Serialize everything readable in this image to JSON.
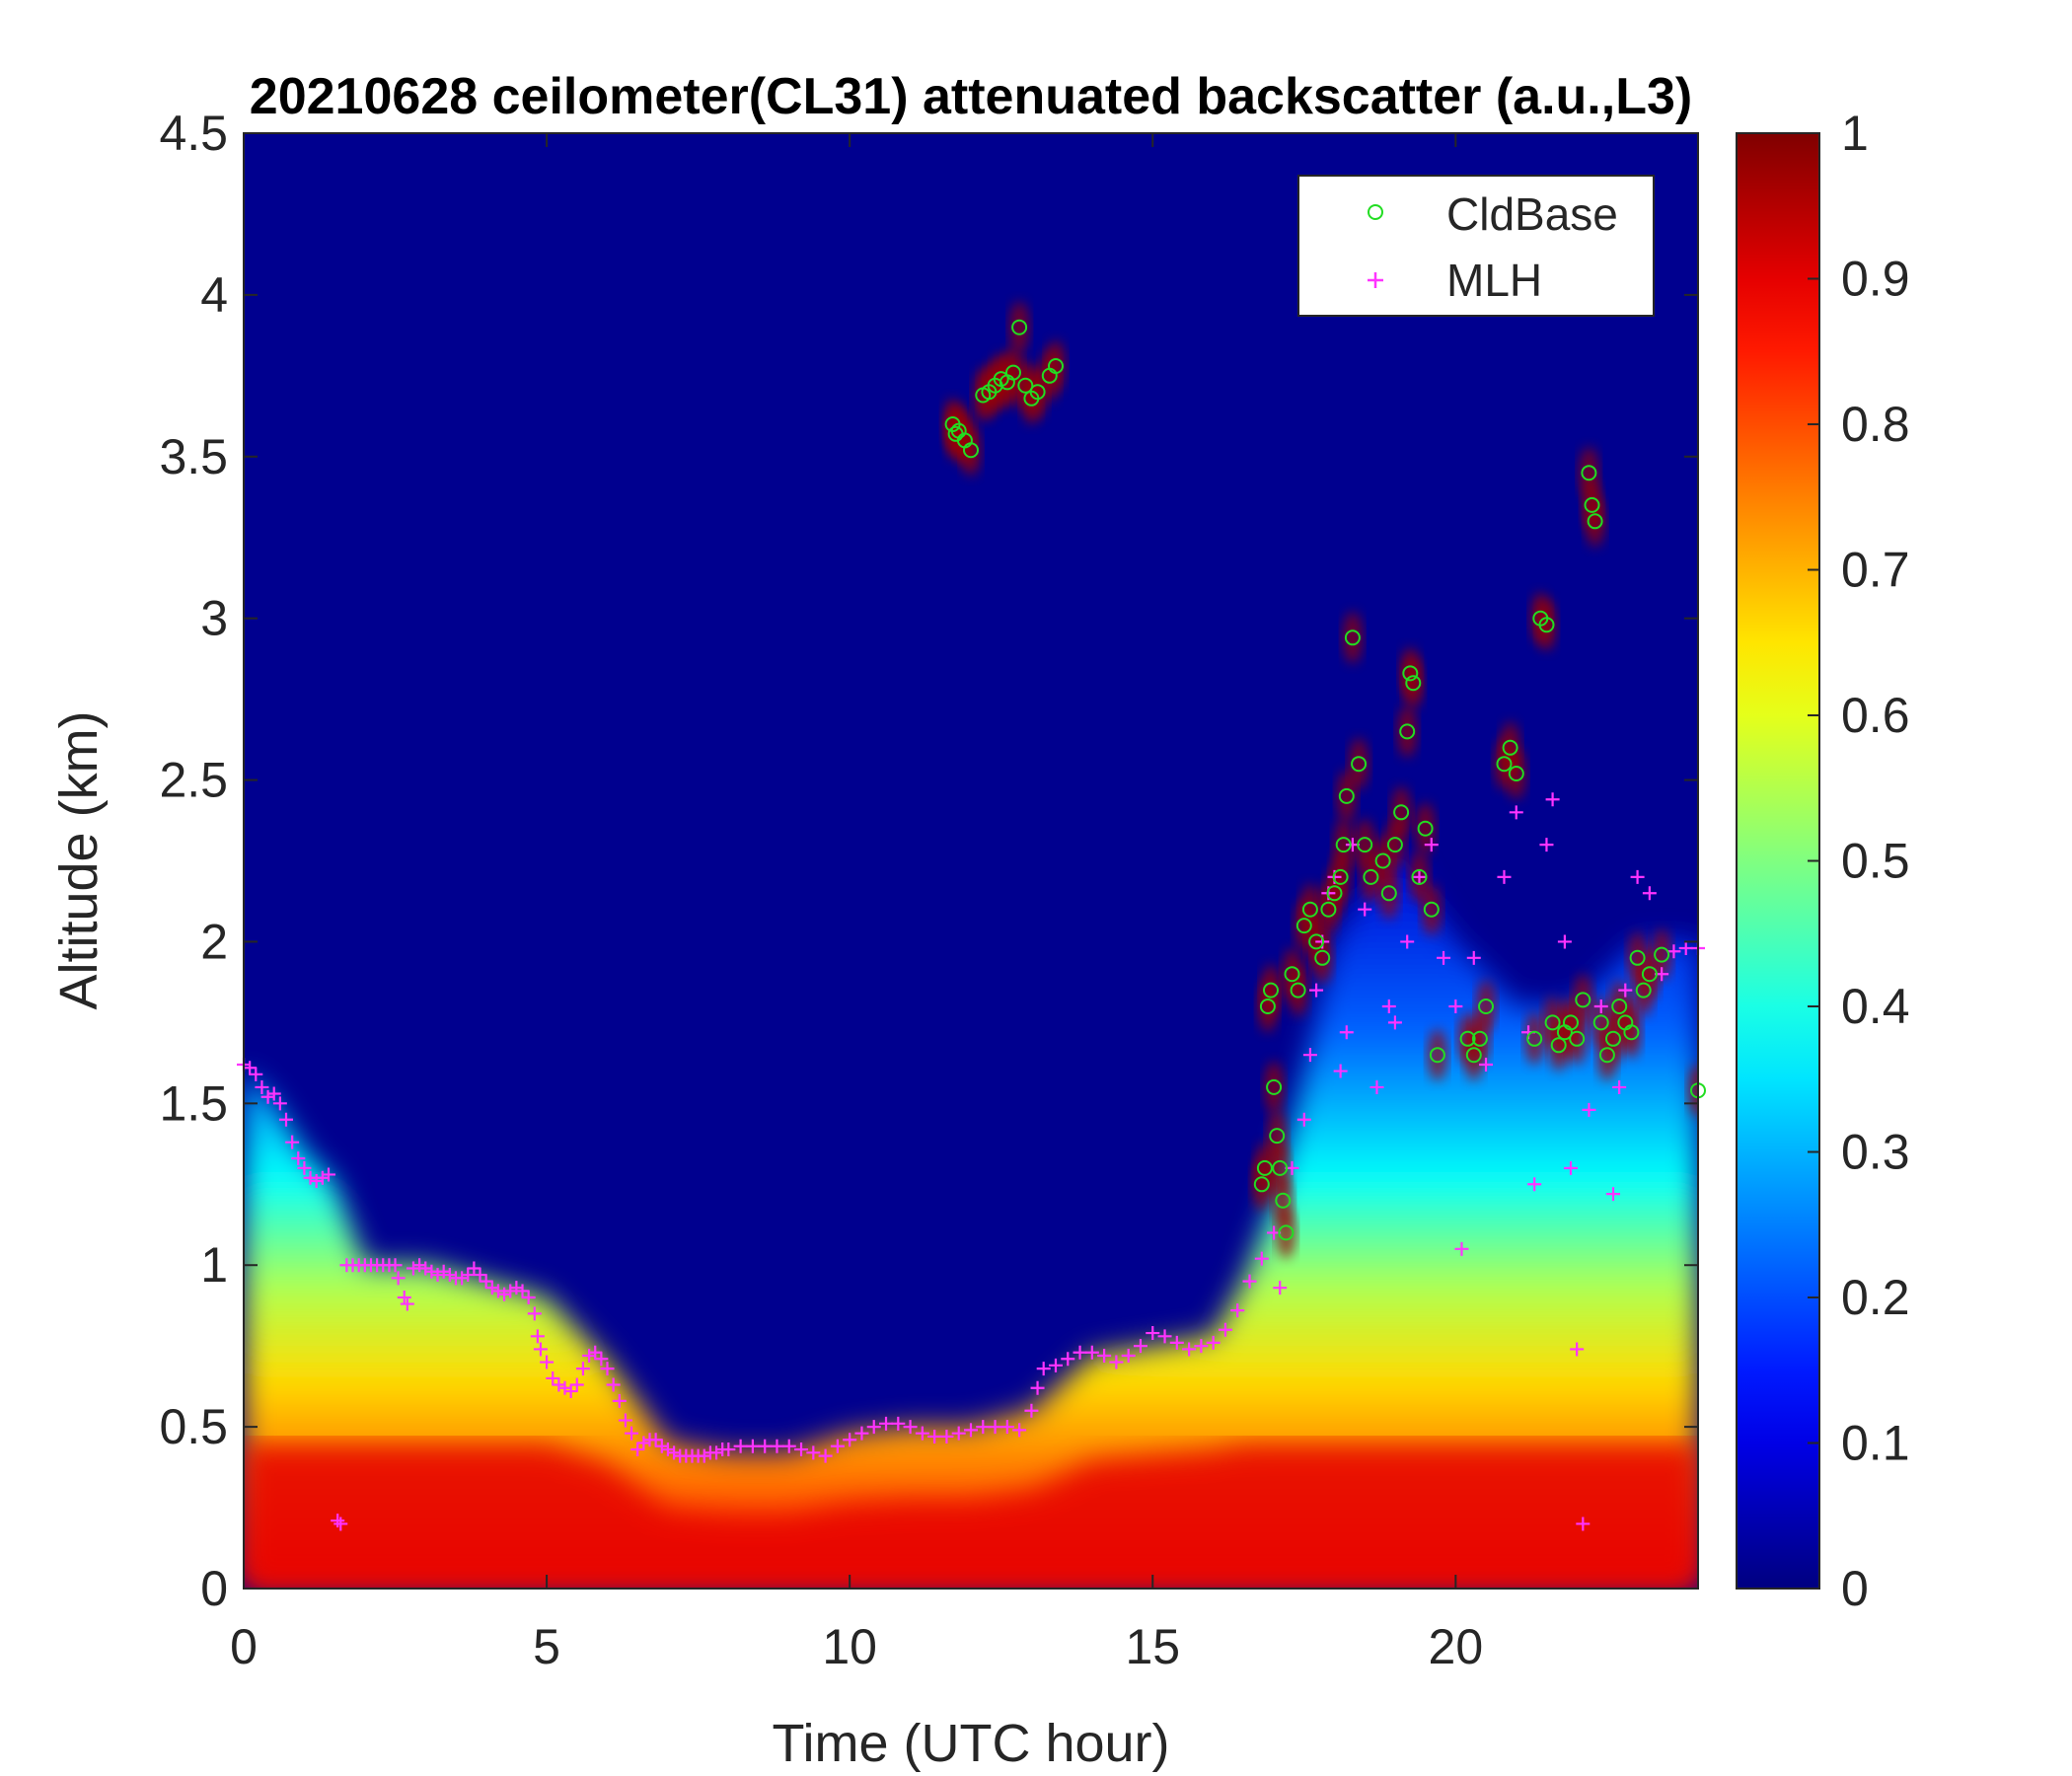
{
  "chart_data": {
    "type": "heatmap",
    "title": "20210628 ceilometer(CL31) attenuated backscatter (a.u.,L3)",
    "xlabel": "Time (UTC hour)",
    "ylabel": "Altitude (km)",
    "xlim": [
      0,
      24
    ],
    "ylim": [
      0,
      4.5
    ],
    "xticks": [
      0,
      5,
      10,
      15,
      20
    ],
    "xtick_labels": [
      "0",
      "5",
      "10",
      "15",
      "20"
    ],
    "yticks": [
      0,
      0.5,
      1,
      1.5,
      2,
      2.5,
      3,
      3.5,
      4,
      4.5
    ],
    "ytick_labels": [
      "0",
      "0.5",
      "1",
      "1.5",
      "2",
      "2.5",
      "3",
      "3.5",
      "4",
      "4.5"
    ],
    "colorbar": {
      "colormap": "jet",
      "range": [
        0,
        1
      ],
      "ticks": [
        0,
        0.1,
        0.2,
        0.3,
        0.4,
        0.5,
        0.6,
        0.7,
        0.8,
        0.9,
        1
      ],
      "tick_labels": [
        "0",
        "0.1",
        "0.2",
        "0.3",
        "0.4",
        "0.5",
        "0.6",
        "0.7",
        "0.8",
        "0.9",
        "1"
      ]
    },
    "legend": {
      "location": "top-right",
      "entries": [
        {
          "label": "CldBase",
          "marker": "circle",
          "color": "#22dd22"
        },
        {
          "label": "MLH",
          "marker": "plus",
          "color": "#ff33ff"
        }
      ]
    },
    "field_profile": {
      "time_hours": [
        0,
        0.5,
        1,
        1.5,
        2,
        3,
        4,
        5,
        6,
        7,
        8,
        9,
        10,
        11,
        12,
        13,
        14,
        15,
        16,
        16.5,
        17,
        17.5,
        18,
        19,
        20,
        21,
        22,
        23,
        24
      ],
      "layer_top_km": [
        1.6,
        1.5,
        1.35,
        1.25,
        1.0,
        1.0,
        0.95,
        0.9,
        0.7,
        0.45,
        0.42,
        0.42,
        0.48,
        0.5,
        0.5,
        0.55,
        0.72,
        0.75,
        0.78,
        0.95,
        1.2,
        1.6,
        2.0,
        2.3,
        2.0,
        1.8,
        1.8,
        2.0,
        2.0
      ]
    },
    "series": [
      {
        "name": "MLH",
        "marker": "+",
        "color": "#ff33ff",
        "points": [
          [
            0,
            1.62
          ],
          [
            0.1,
            1.61
          ],
          [
            0.2,
            1.59
          ],
          [
            0.3,
            1.55
          ],
          [
            0.4,
            1.52
          ],
          [
            0.5,
            1.53
          ],
          [
            0.6,
            1.5
          ],
          [
            0.7,
            1.45
          ],
          [
            0.8,
            1.38
          ],
          [
            0.9,
            1.33
          ],
          [
            1.0,
            1.3
          ],
          [
            1.1,
            1.27
          ],
          [
            1.2,
            1.26
          ],
          [
            1.3,
            1.27
          ],
          [
            1.4,
            1.28
          ],
          [
            1.55,
            0.21
          ],
          [
            1.6,
            0.2
          ],
          [
            1.7,
            1.0
          ],
          [
            1.8,
            1.0
          ],
          [
            1.9,
            1.0
          ],
          [
            2.0,
            1.0
          ],
          [
            2.1,
            1.0
          ],
          [
            2.2,
            1.0
          ],
          [
            2.3,
            1.0
          ],
          [
            2.4,
            1.0
          ],
          [
            2.5,
            1.0
          ],
          [
            2.55,
            0.96
          ],
          [
            2.65,
            0.9
          ],
          [
            2.7,
            0.88
          ],
          [
            2.8,
            0.99
          ],
          [
            2.9,
            1.0
          ],
          [
            3.0,
            0.99
          ],
          [
            3.1,
            0.98
          ],
          [
            3.2,
            0.97
          ],
          [
            3.3,
            0.98
          ],
          [
            3.4,
            0.97
          ],
          [
            3.5,
            0.96
          ],
          [
            3.6,
            0.96
          ],
          [
            3.7,
            0.97
          ],
          [
            3.8,
            0.99
          ],
          [
            3.9,
            0.97
          ],
          [
            4.0,
            0.95
          ],
          [
            4.1,
            0.93
          ],
          [
            4.2,
            0.92
          ],
          [
            4.3,
            0.91
          ],
          [
            4.4,
            0.92
          ],
          [
            4.5,
            0.93
          ],
          [
            4.6,
            0.92
          ],
          [
            4.7,
            0.9
          ],
          [
            4.8,
            0.85
          ],
          [
            4.85,
            0.78
          ],
          [
            4.9,
            0.74
          ],
          [
            5.0,
            0.7
          ],
          [
            5.1,
            0.65
          ],
          [
            5.2,
            0.63
          ],
          [
            5.3,
            0.62
          ],
          [
            5.4,
            0.61
          ],
          [
            5.5,
            0.63
          ],
          [
            5.6,
            0.68
          ],
          [
            5.7,
            0.72
          ],
          [
            5.8,
            0.73
          ],
          [
            5.9,
            0.71
          ],
          [
            6.0,
            0.68
          ],
          [
            6.1,
            0.63
          ],
          [
            6.2,
            0.58
          ],
          [
            6.3,
            0.52
          ],
          [
            6.4,
            0.48
          ],
          [
            6.5,
            0.43
          ],
          [
            6.6,
            0.45
          ],
          [
            6.7,
            0.46
          ],
          [
            6.8,
            0.46
          ],
          [
            6.9,
            0.44
          ],
          [
            7.0,
            0.43
          ],
          [
            7.1,
            0.42
          ],
          [
            7.2,
            0.41
          ],
          [
            7.3,
            0.41
          ],
          [
            7.4,
            0.41
          ],
          [
            7.5,
            0.41
          ],
          [
            7.6,
            0.41
          ],
          [
            7.7,
            0.42
          ],
          [
            7.8,
            0.42
          ],
          [
            7.9,
            0.43
          ],
          [
            8.0,
            0.43
          ],
          [
            8.2,
            0.44
          ],
          [
            8.4,
            0.44
          ],
          [
            8.6,
            0.44
          ],
          [
            8.8,
            0.44
          ],
          [
            9.0,
            0.44
          ],
          [
            9.2,
            0.43
          ],
          [
            9.4,
            0.42
          ],
          [
            9.6,
            0.41
          ],
          [
            9.8,
            0.44
          ],
          [
            10.0,
            0.46
          ],
          [
            10.2,
            0.48
          ],
          [
            10.4,
            0.5
          ],
          [
            10.6,
            0.51
          ],
          [
            10.8,
            0.51
          ],
          [
            11.0,
            0.5
          ],
          [
            11.2,
            0.48
          ],
          [
            11.4,
            0.47
          ],
          [
            11.6,
            0.47
          ],
          [
            11.8,
            0.48
          ],
          [
            12.0,
            0.49
          ],
          [
            12.2,
            0.5
          ],
          [
            12.4,
            0.5
          ],
          [
            12.6,
            0.5
          ],
          [
            12.8,
            0.49
          ],
          [
            13.0,
            0.55
          ],
          [
            13.1,
            0.62
          ],
          [
            13.2,
            0.68
          ],
          [
            13.4,
            0.69
          ],
          [
            13.6,
            0.71
          ],
          [
            13.8,
            0.73
          ],
          [
            14.0,
            0.73
          ],
          [
            14.2,
            0.72
          ],
          [
            14.4,
            0.7
          ],
          [
            14.6,
            0.72
          ],
          [
            14.8,
            0.75
          ],
          [
            15.0,
            0.79
          ],
          [
            15.2,
            0.78
          ],
          [
            15.4,
            0.76
          ],
          [
            15.6,
            0.74
          ],
          [
            15.8,
            0.75
          ],
          [
            16.0,
            0.76
          ],
          [
            16.2,
            0.8
          ],
          [
            16.4,
            0.86
          ],
          [
            16.6,
            0.95
          ],
          [
            16.8,
            1.02
          ],
          [
            17.0,
            1.1
          ],
          [
            17.1,
            0.93
          ],
          [
            17.3,
            1.3
          ],
          [
            17.5,
            1.45
          ],
          [
            17.6,
            1.65
          ],
          [
            17.7,
            1.85
          ],
          [
            17.8,
            2.0
          ],
          [
            17.9,
            2.15
          ],
          [
            18.0,
            2.2
          ],
          [
            18.1,
            1.6
          ],
          [
            18.2,
            1.72
          ],
          [
            18.3,
            2.3
          ],
          [
            18.5,
            2.1
          ],
          [
            18.7,
            1.55
          ],
          [
            18.9,
            1.8
          ],
          [
            19.0,
            1.75
          ],
          [
            19.2,
            2.0
          ],
          [
            19.4,
            2.2
          ],
          [
            19.6,
            2.3
          ],
          [
            19.8,
            1.95
          ],
          [
            20.0,
            1.8
          ],
          [
            20.1,
            1.05
          ],
          [
            20.3,
            1.95
          ],
          [
            20.5,
            1.62
          ],
          [
            20.8,
            2.2
          ],
          [
            21.0,
            2.4
          ],
          [
            21.2,
            1.72
          ],
          [
            21.3,
            1.25
          ],
          [
            21.5,
            2.3
          ],
          [
            21.6,
            2.44
          ],
          [
            21.8,
            2.0
          ],
          [
            21.9,
            1.3
          ],
          [
            22.0,
            0.74
          ],
          [
            22.1,
            0.2
          ],
          [
            22.2,
            1.48
          ],
          [
            22.4,
            1.8
          ],
          [
            22.6,
            1.22
          ],
          [
            22.7,
            1.55
          ],
          [
            22.8,
            1.85
          ],
          [
            23.0,
            2.2
          ],
          [
            23.2,
            2.15
          ],
          [
            23.4,
            1.9
          ],
          [
            23.6,
            1.97
          ],
          [
            23.8,
            1.98
          ],
          [
            24.0,
            1.98
          ]
        ]
      },
      {
        "name": "CldBase",
        "marker": "o",
        "color": "#22dd22",
        "points": [
          [
            11.7,
            3.6
          ],
          [
            11.75,
            3.57
          ],
          [
            11.8,
            3.58
          ],
          [
            11.9,
            3.55
          ],
          [
            12.0,
            3.52
          ],
          [
            12.2,
            3.69
          ],
          [
            12.3,
            3.7
          ],
          [
            12.4,
            3.72
          ],
          [
            12.5,
            3.74
          ],
          [
            12.6,
            3.73
          ],
          [
            12.7,
            3.76
          ],
          [
            12.8,
            3.9
          ],
          [
            12.9,
            3.72
          ],
          [
            13.0,
            3.68
          ],
          [
            13.1,
            3.7
          ],
          [
            13.3,
            3.75
          ],
          [
            13.4,
            3.78
          ],
          [
            16.8,
            1.25
          ],
          [
            16.85,
            1.3
          ],
          [
            16.9,
            1.8
          ],
          [
            16.95,
            1.85
          ],
          [
            17.0,
            1.55
          ],
          [
            17.05,
            1.4
          ],
          [
            17.1,
            1.3
          ],
          [
            17.15,
            1.2
          ],
          [
            17.2,
            1.1
          ],
          [
            17.3,
            1.9
          ],
          [
            17.4,
            1.85
          ],
          [
            17.5,
            2.05
          ],
          [
            17.6,
            2.1
          ],
          [
            17.7,
            2.0
          ],
          [
            17.8,
            1.95
          ],
          [
            17.9,
            2.1
          ],
          [
            18.0,
            2.15
          ],
          [
            18.1,
            2.2
          ],
          [
            18.15,
            2.3
          ],
          [
            18.2,
            2.45
          ],
          [
            18.3,
            2.94
          ],
          [
            18.4,
            2.55
          ],
          [
            18.5,
            2.3
          ],
          [
            18.6,
            2.2
          ],
          [
            18.8,
            2.25
          ],
          [
            18.9,
            2.15
          ],
          [
            19.0,
            2.3
          ],
          [
            19.1,
            2.4
          ],
          [
            19.2,
            2.65
          ],
          [
            19.25,
            2.83
          ],
          [
            19.3,
            2.8
          ],
          [
            19.4,
            2.2
          ],
          [
            19.5,
            2.35
          ],
          [
            19.6,
            2.1
          ],
          [
            19.7,
            1.65
          ],
          [
            20.2,
            1.7
          ],
          [
            20.3,
            1.65
          ],
          [
            20.4,
            1.7
          ],
          [
            20.5,
            1.8
          ],
          [
            20.8,
            2.55
          ],
          [
            20.9,
            2.6
          ],
          [
            21.0,
            2.52
          ],
          [
            21.3,
            1.7
          ],
          [
            21.4,
            3.0
          ],
          [
            21.5,
            2.98
          ],
          [
            21.6,
            1.75
          ],
          [
            21.7,
            1.68
          ],
          [
            21.8,
            1.72
          ],
          [
            21.9,
            1.75
          ],
          [
            22.0,
            1.7
          ],
          [
            22.1,
            1.82
          ],
          [
            22.2,
            3.45
          ],
          [
            22.25,
            3.35
          ],
          [
            22.3,
            3.3
          ],
          [
            22.4,
            1.75
          ],
          [
            22.5,
            1.65
          ],
          [
            22.6,
            1.7
          ],
          [
            22.7,
            1.8
          ],
          [
            22.8,
            1.75
          ],
          [
            22.9,
            1.72
          ],
          [
            23.0,
            1.95
          ],
          [
            23.1,
            1.85
          ],
          [
            23.2,
            1.9
          ],
          [
            23.4,
            1.96
          ],
          [
            24.0,
            1.54
          ]
        ]
      }
    ]
  }
}
